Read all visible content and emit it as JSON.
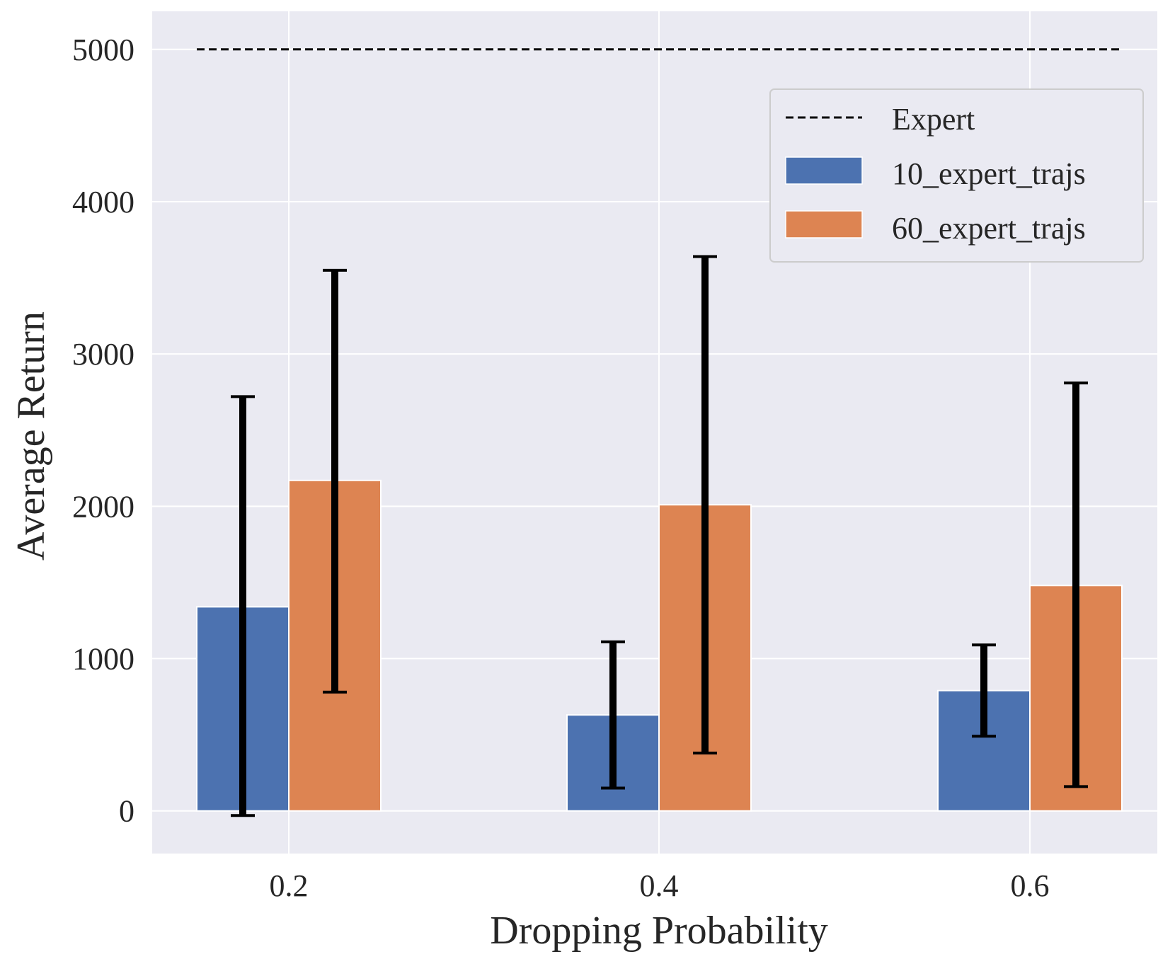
{
  "chart_data": {
    "type": "bar",
    "xlabel": "Dropping Probability",
    "ylabel": "Average Return",
    "categories": [
      "0.2",
      "0.4",
      "0.6"
    ],
    "ylim": [
      -280,
      5250
    ],
    "yticks": [
      0,
      1000,
      2000,
      3000,
      4000,
      5000
    ],
    "ytick_labels": [
      "0",
      "1000",
      "2000",
      "3000",
      "4000",
      "5000"
    ],
    "grid": true,
    "legend_position": "top-right",
    "series": [
      {
        "name": "10_expert_trajs",
        "color": "#4c72b0",
        "values": [
          1340,
          630,
          790
        ],
        "error_low": [
          -30,
          150,
          490
        ],
        "error_high": [
          2720,
          1110,
          1090
        ]
      },
      {
        "name": "60_expert_trajs",
        "color": "#dd8452",
        "values": [
          2170,
          2010,
          1480
        ],
        "error_low": [
          780,
          380,
          160
        ],
        "error_high": [
          3550,
          3640,
          2810
        ]
      }
    ],
    "reference_line": {
      "name": "Expert",
      "value": 5000,
      "color": "#000000"
    }
  }
}
